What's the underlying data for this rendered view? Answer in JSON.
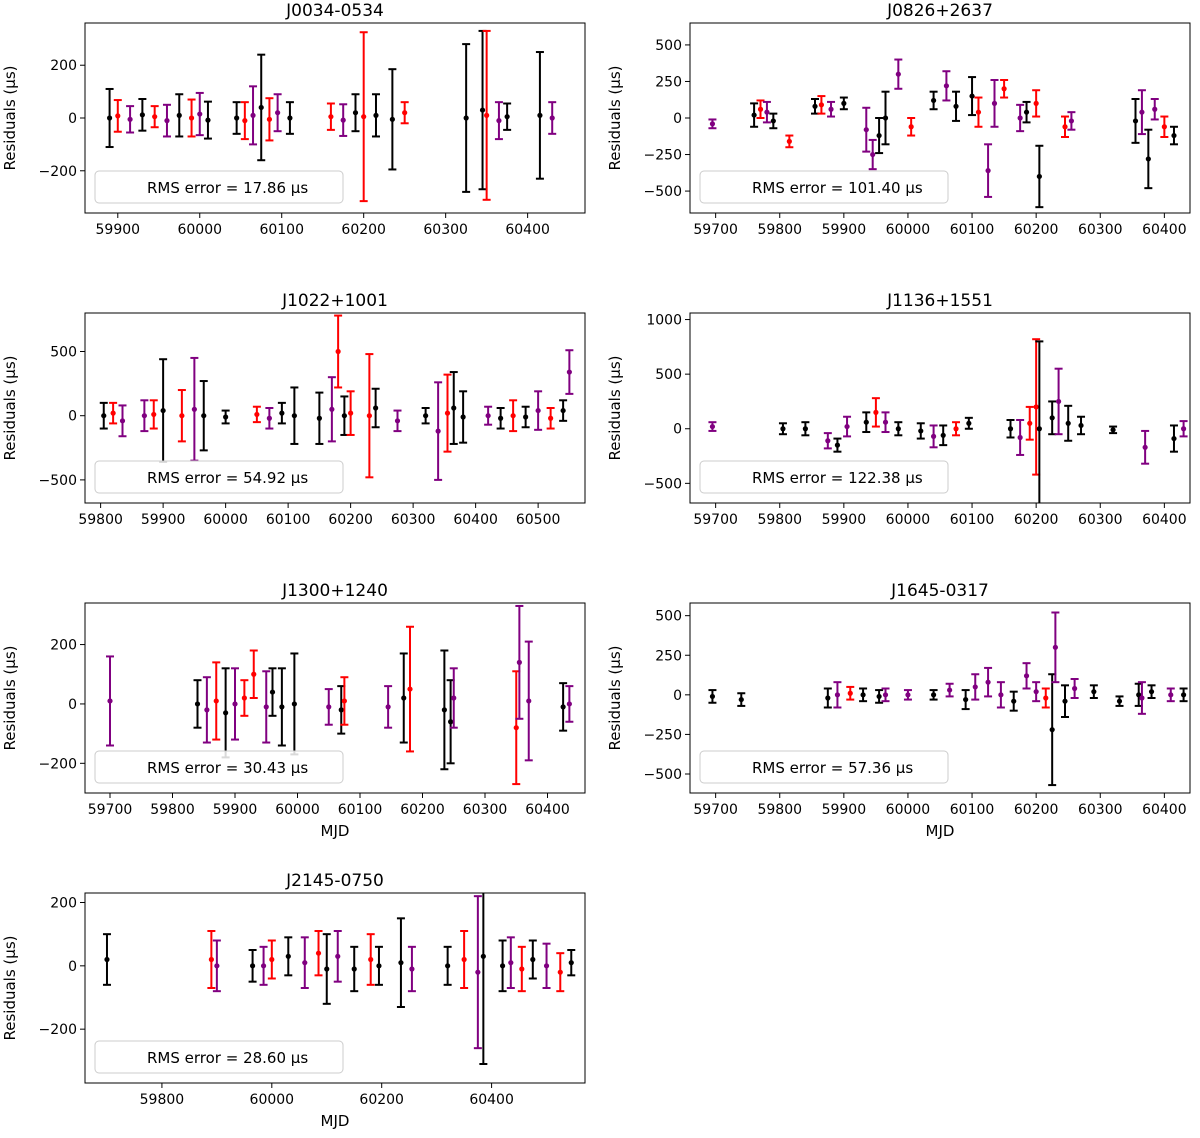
{
  "figure": {
    "ylabel": "Residuals (μs)",
    "xlabel": "MJD"
  },
  "chart_data": [
    {
      "type": "scatter",
      "title": "J0034-0534",
      "ylabel": "Residuals (μs)",
      "xlabel": "",
      "xlim": [
        59860,
        60470
      ],
      "ylim": [
        -360,
        360
      ],
      "xticks": [
        59900,
        60000,
        60100,
        60200,
        60300,
        60400
      ],
      "yticks": [
        -200,
        0,
        200
      ],
      "rms_label": "RMS error = 17.86 μs",
      "colors": [
        "#000000",
        "#ff0000",
        "#800080"
      ],
      "x": [
        59890,
        59900,
        59915,
        59930,
        59945,
        59960,
        59975,
        59990,
        60000,
        60010,
        60045,
        60055,
        60065,
        60075,
        60085,
        60095,
        60110,
        60160,
        60175,
        60190,
        60200,
        60215,
        60235,
        60250,
        60325,
        60345,
        60350,
        60365,
        60375,
        60415,
        60430
      ],
      "y": [
        0,
        8,
        -5,
        12,
        5,
        -10,
        10,
        0,
        15,
        -8,
        0,
        -10,
        10,
        40,
        -5,
        20,
        0,
        5,
        -8,
        20,
        5,
        10,
        -5,
        20,
        0,
        30,
        10,
        -10,
        5,
        10,
        0
      ],
      "err": [
        110,
        60,
        50,
        60,
        40,
        60,
        80,
        70,
        80,
        70,
        60,
        70,
        110,
        200,
        80,
        70,
        60,
        50,
        60,
        70,
        320,
        80,
        190,
        40,
        280,
        300,
        320,
        70,
        50,
        240,
        60
      ],
      "series_idx": [
        0,
        1,
        2,
        0,
        1,
        2,
        0,
        1,
        2,
        0,
        0,
        1,
        2,
        0,
        1,
        2,
        0,
        1,
        2,
        0,
        1,
        0,
        0,
        1,
        0,
        0,
        1,
        2,
        0,
        0,
        2
      ]
    },
    {
      "type": "scatter",
      "title": "J0826+2637",
      "ylabel": "Residuals (μs)",
      "xlabel": "",
      "xlim": [
        59660,
        60440
      ],
      "ylim": [
        -650,
        650
      ],
      "xticks": [
        59700,
        59800,
        59900,
        60000,
        60100,
        60200,
        60300,
        60400
      ],
      "yticks": [
        -500,
        -250,
        0,
        250,
        500
      ],
      "rms_label": "RMS error = 101.40 μs",
      "colors": [
        "#000000",
        "#ff0000",
        "#800080"
      ],
      "x": [
        59695,
        59760,
        59770,
        59780,
        59790,
        59815,
        59855,
        59865,
        59880,
        59900,
        59935,
        59945,
        59955,
        59965,
        59985,
        60005,
        60040,
        60060,
        60075,
        60100,
        60110,
        60125,
        60135,
        60150,
        60175,
        60185,
        60200,
        60205,
        60245,
        60255,
        60355,
        60365,
        60375,
        60385,
        60400,
        60415
      ],
      "y": [
        -40,
        20,
        60,
        40,
        -20,
        -160,
        80,
        90,
        60,
        100,
        -80,
        -250,
        -120,
        0,
        300,
        -60,
        120,
        220,
        80,
        150,
        40,
        -360,
        100,
        200,
        0,
        40,
        100,
        -400,
        -60,
        -20,
        -20,
        40,
        -280,
        60,
        -60,
        -120
      ],
      "err": [
        30,
        80,
        60,
        70,
        50,
        40,
        50,
        60,
        50,
        40,
        150,
        100,
        120,
        180,
        100,
        60,
        60,
        100,
        100,
        130,
        100,
        180,
        160,
        60,
        90,
        70,
        90,
        210,
        70,
        60,
        150,
        150,
        200,
        70,
        70,
        60
      ],
      "series_idx": [
        2,
        0,
        1,
        2,
        0,
        1,
        0,
        1,
        2,
        0,
        2,
        2,
        0,
        0,
        2,
        1,
        0,
        2,
        0,
        0,
        1,
        2,
        2,
        1,
        2,
        0,
        1,
        0,
        1,
        2,
        0,
        2,
        0,
        2,
        1,
        0
      ]
    },
    {
      "type": "scatter",
      "title": "J1022+1001",
      "ylabel": "Residuals (μs)",
      "xlabel": "",
      "xlim": [
        59775,
        60575
      ],
      "ylim": [
        -680,
        800
      ],
      "xticks": [
        59800,
        59900,
        60000,
        60100,
        60200,
        60300,
        60400,
        60500
      ],
      "yticks": [
        -500,
        0,
        500
      ],
      "rms_label": "RMS error = 54.92 μs",
      "colors": [
        "#000000",
        "#ff0000",
        "#800080"
      ],
      "x": [
        59805,
        59820,
        59835,
        59870,
        59885,
        59900,
        59930,
        59950,
        59965,
        60000,
        60050,
        60070,
        60090,
        60110,
        60150,
        60170,
        60180,
        60190,
        60200,
        60230,
        60240,
        60275,
        60320,
        60340,
        60355,
        60365,
        60380,
        60420,
        60440,
        60460,
        60480,
        60500,
        60520,
        60540,
        60550
      ],
      "y": [
        0,
        20,
        -40,
        0,
        10,
        40,
        0,
        50,
        0,
        -10,
        10,
        -20,
        20,
        0,
        -20,
        50,
        500,
        0,
        20,
        0,
        60,
        -40,
        0,
        -120,
        20,
        60,
        -10,
        0,
        -20,
        0,
        -10,
        40,
        -20,
        40,
        340
      ],
      "err": [
        100,
        80,
        120,
        120,
        110,
        400,
        200,
        400,
        270,
        50,
        60,
        80,
        80,
        220,
        200,
        250,
        280,
        150,
        170,
        480,
        150,
        80,
        60,
        380,
        300,
        280,
        200,
        70,
        80,
        120,
        80,
        150,
        80,
        80,
        170
      ],
      "series_idx": [
        0,
        1,
        2,
        2,
        1,
        0,
        1,
        2,
        0,
        0,
        1,
        2,
        0,
        0,
        0,
        2,
        1,
        0,
        1,
        1,
        0,
        2,
        0,
        2,
        1,
        0,
        0,
        2,
        0,
        1,
        0,
        2,
        1,
        0,
        2
      ]
    },
    {
      "type": "scatter",
      "title": "J1136+1551",
      "ylabel": "Residuals (μs)",
      "xlabel": "",
      "xlim": [
        59660,
        60440
      ],
      "ylim": [
        -680,
        1060
      ],
      "xticks": [
        59700,
        59800,
        59900,
        60000,
        60100,
        60200,
        60300,
        60400
      ],
      "yticks": [
        -500,
        0,
        500,
        1000
      ],
      "rms_label": "RMS error = 122.38 μs",
      "colors": [
        "#000000",
        "#ff0000",
        "#800080"
      ],
      "x": [
        59695,
        59805,
        59840,
        59875,
        59890,
        59905,
        59935,
        59950,
        59965,
        59985,
        60020,
        60040,
        60055,
        60075,
        60095,
        60160,
        60175,
        60190,
        60200,
        60205,
        60225,
        60235,
        60250,
        60270,
        60320,
        60370,
        60415,
        60430
      ],
      "y": [
        20,
        0,
        0,
        -110,
        -150,
        20,
        60,
        150,
        60,
        0,
        -20,
        -70,
        -60,
        0,
        50,
        0,
        -80,
        50,
        200,
        0,
        100,
        250,
        50,
        30,
        -10,
        -170,
        -90,
        0
      ],
      "err": [
        40,
        50,
        60,
        70,
        60,
        90,
        90,
        130,
        90,
        60,
        70,
        100,
        90,
        60,
        50,
        80,
        160,
        150,
        620,
        800,
        150,
        300,
        160,
        80,
        30,
        150,
        120,
        70
      ],
      "series_idx": [
        2,
        0,
        0,
        2,
        0,
        2,
        0,
        1,
        2,
        0,
        0,
        2,
        0,
        1,
        0,
        0,
        2,
        1,
        1,
        0,
        0,
        2,
        0,
        0,
        0,
        2,
        0,
        2
      ]
    },
    {
      "type": "scatter",
      "title": "J1300+1240",
      "ylabel": "Residuals (μs)",
      "xlabel": "MJD",
      "xlim": [
        59660,
        60460
      ],
      "ylim": [
        -300,
        340
      ],
      "xticks": [
        59700,
        59800,
        59900,
        60000,
        60100,
        60200,
        60300,
        60400
      ],
      "yticks": [
        -200,
        0,
        200
      ],
      "rms_label": "RMS error = 30.43 μs",
      "colors": [
        "#000000",
        "#ff0000",
        "#800080"
      ],
      "x": [
        59700,
        59840,
        59855,
        59870,
        59885,
        59900,
        59915,
        59930,
        59950,
        59960,
        59975,
        59995,
        60050,
        60070,
        60075,
        60145,
        60170,
        60180,
        60235,
        60245,
        60250,
        60350,
        60355,
        60370,
        60425,
        60435
      ],
      "y": [
        10,
        0,
        -20,
        10,
        -30,
        0,
        20,
        100,
        -10,
        40,
        -10,
        0,
        -10,
        -20,
        10,
        -10,
        20,
        50,
        -20,
        -60,
        20,
        -80,
        140,
        10,
        -10,
        0
      ],
      "err": [
        150,
        80,
        110,
        130,
        150,
        120,
        60,
        80,
        120,
        80,
        130,
        170,
        60,
        80,
        80,
        70,
        150,
        210,
        200,
        140,
        100,
        190,
        190,
        200,
        80,
        60
      ],
      "series_idx": [
        2,
        0,
        2,
        1,
        0,
        2,
        1,
        1,
        2,
        0,
        0,
        0,
        2,
        0,
        1,
        2,
        0,
        1,
        0,
        0,
        2,
        1,
        2,
        2,
        0,
        2
      ]
    },
    {
      "type": "scatter",
      "title": "J1645-0317",
      "ylabel": "Residuals (μs)",
      "xlabel": "MJD",
      "xlim": [
        59660,
        60440
      ],
      "ylim": [
        -620,
        580
      ],
      "xticks": [
        59700,
        59800,
        59900,
        60000,
        60100,
        60200,
        60300,
        60400
      ],
      "yticks": [
        -500,
        -250,
        0,
        250,
        500
      ],
      "rms_label": "RMS error = 57.36 μs",
      "colors": [
        "#000000",
        "#ff0000",
        "#800080"
      ],
      "x": [
        59695,
        59740,
        59875,
        59890,
        59910,
        59930,
        59955,
        59965,
        60000,
        60040,
        60065,
        60090,
        60105,
        60125,
        60145,
        60165,
        60185,
        60200,
        60215,
        60225,
        60230,
        60245,
        60260,
        60290,
        60330,
        60360,
        60365,
        60380,
        60410,
        60430
      ],
      "y": [
        -10,
        -30,
        -20,
        0,
        10,
        0,
        -10,
        0,
        0,
        0,
        30,
        -30,
        50,
        80,
        0,
        -40,
        120,
        20,
        -20,
        -220,
        300,
        -40,
        40,
        20,
        -40,
        0,
        -20,
        20,
        0,
        0
      ],
      "err": [
        40,
        40,
        60,
        80,
        40,
        40,
        40,
        40,
        30,
        30,
        40,
        60,
        80,
        90,
        80,
        60,
        80,
        60,
        60,
        350,
        220,
        100,
        60,
        40,
        30,
        70,
        100,
        40,
        40,
        40
      ],
      "series_idx": [
        0,
        0,
        0,
        2,
        1,
        0,
        0,
        2,
        2,
        0,
        2,
        0,
        2,
        2,
        2,
        0,
        2,
        2,
        1,
        0,
        2,
        0,
        2,
        0,
        0,
        0,
        2,
        0,
        2,
        0
      ]
    },
    {
      "type": "scatter",
      "title": "J2145-0750",
      "ylabel": "Residuals (μs)",
      "xlabel": "MJD",
      "xlim": [
        59660,
        60570
      ],
      "ylim": [
        -370,
        230
      ],
      "xticks": [
        59800,
        60000,
        60200,
        60400
      ],
      "yticks": [
        -200,
        0,
        200
      ],
      "rms_label": "RMS error = 28.60 μs",
      "colors": [
        "#000000",
        "#ff0000",
        "#800080"
      ],
      "x": [
        59700,
        59890,
        59900,
        59965,
        59985,
        60000,
        60030,
        60060,
        60085,
        60100,
        60120,
        60150,
        60180,
        60195,
        60235,
        60255,
        60320,
        60350,
        60375,
        60385,
        60420,
        60435,
        60455,
        60475,
        60500,
        60525,
        60545
      ],
      "y": [
        20,
        20,
        0,
        0,
        0,
        20,
        30,
        10,
        40,
        -10,
        30,
        -10,
        20,
        0,
        10,
        -10,
        0,
        20,
        -20,
        30,
        0,
        10,
        -10,
        20,
        0,
        -20,
        10
      ],
      "err": [
        80,
        90,
        80,
        50,
        60,
        60,
        60,
        80,
        70,
        110,
        80,
        70,
        80,
        60,
        140,
        70,
        60,
        90,
        240,
        340,
        80,
        80,
        70,
        60,
        70,
        60,
        40
      ],
      "series_idx": [
        0,
        1,
        2,
        0,
        2,
        1,
        0,
        2,
        1,
        0,
        2,
        0,
        1,
        0,
        0,
        2,
        0,
        1,
        2,
        0,
        0,
        2,
        1,
        0,
        2,
        1,
        0
      ]
    }
  ]
}
